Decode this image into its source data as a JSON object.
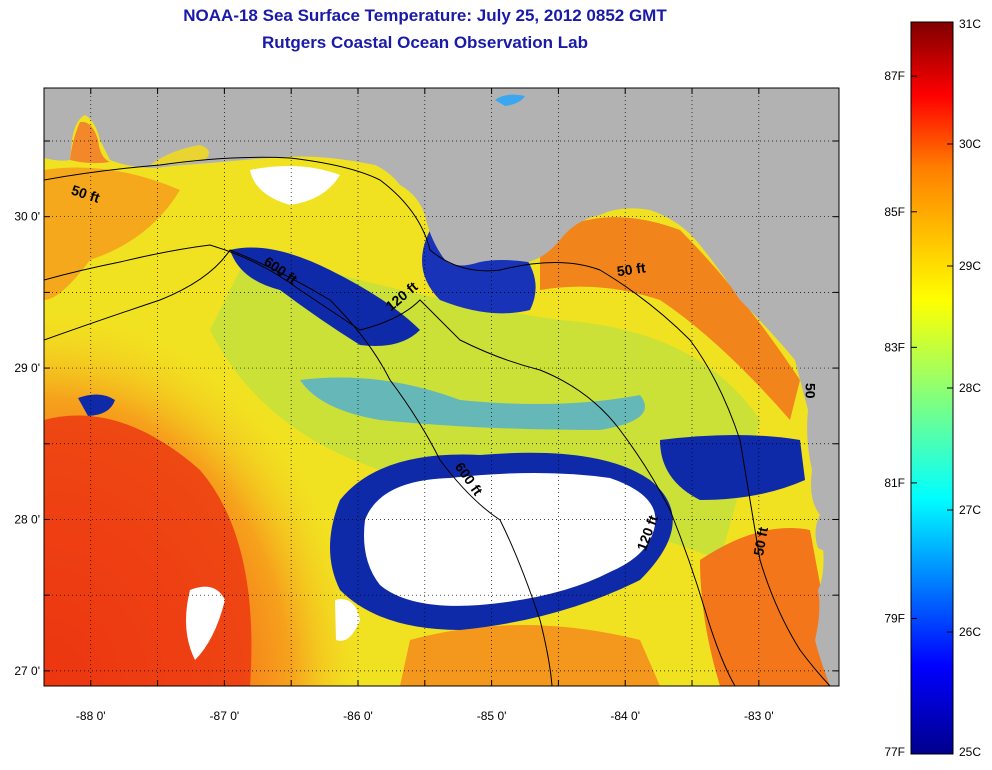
{
  "title": {
    "line1": "NOAA-18 Sea Surface Temperature:  July 25, 2012 0852 GMT",
    "line2": "Rutgers Coastal Ocean Observation Lab"
  },
  "map": {
    "lon_range": [
      -88.35,
      -82.4
    ],
    "lat_range": [
      26.9,
      30.85
    ],
    "lon_ticks": [
      {
        "value": -88,
        "label": "-88 0'"
      },
      {
        "value": -87,
        "label": "-87 0'"
      },
      {
        "value": -86,
        "label": "-86 0'"
      },
      {
        "value": -85,
        "label": "-85 0'"
      },
      {
        "value": -84,
        "label": "-84 0'"
      },
      {
        "value": -83,
        "label": "-83 0'"
      }
    ],
    "lat_ticks": [
      {
        "value": 30,
        "label": "30 0'"
      },
      {
        "value": 29,
        "label": "29 0'"
      },
      {
        "value": 28,
        "label": "28 0'"
      },
      {
        "value": 27,
        "label": "27 0'"
      }
    ],
    "contour_labels": [
      {
        "text": "50 ft",
        "lon": -88.05,
        "lat": 30.12,
        "rotate": 18
      },
      {
        "text": "600 ft",
        "lon": -86.6,
        "lat": 29.62,
        "rotate": 35
      },
      {
        "text": "120 ft",
        "lon": -85.65,
        "lat": 29.45,
        "rotate": -40
      },
      {
        "text": "50 ft",
        "lon": -83.95,
        "lat": 29.62,
        "rotate": -8
      },
      {
        "text": "600 ft",
        "lon": -85.2,
        "lat": 28.25,
        "rotate": 55
      },
      {
        "text": "120 ft",
        "lon": -83.8,
        "lat": 27.9,
        "rotate": -70
      },
      {
        "text": "50 ft",
        "lon": -82.95,
        "lat": 27.85,
        "rotate": -80
      },
      {
        "text": "50",
        "lon": -82.65,
        "lat": 28.85,
        "rotate": 90
      }
    ],
    "colors": {
      "land": "#b2b2b2",
      "cloud": "#ffffff",
      "warm_far": "#f02a10",
      "warm": "#f5621a",
      "orange": "#f6a21c",
      "yellow": "#f3e620",
      "yellow_green": "#c6e43a",
      "cool": "#2fb1f0",
      "cold": "#0e2aa8"
    }
  },
  "colorbar": {
    "celsius": [
      {
        "value": 31,
        "label": "31C"
      },
      {
        "value": 30,
        "label": "30C"
      },
      {
        "value": 29,
        "label": "29C"
      },
      {
        "value": 28,
        "label": "28C"
      },
      {
        "value": 27,
        "label": "27C"
      },
      {
        "value": 26,
        "label": "26C"
      },
      {
        "value": 25,
        "label": "25C"
      }
    ],
    "fahrenheit": [
      {
        "value": 87,
        "label": "87F"
      },
      {
        "value": 85,
        "label": "85F"
      },
      {
        "value": 83,
        "label": "83F"
      },
      {
        "value": 81,
        "label": "81F"
      },
      {
        "value": 79,
        "label": "79F"
      },
      {
        "value": 77,
        "label": "77F"
      }
    ],
    "range_c": [
      25,
      31
    ]
  }
}
